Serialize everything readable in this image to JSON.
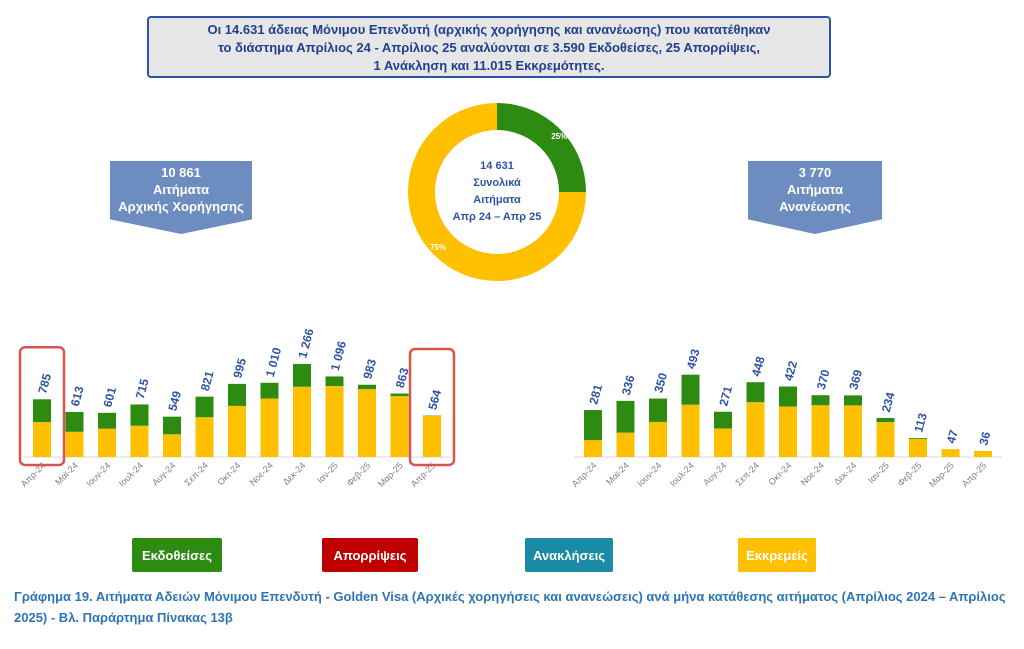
{
  "summary": {
    "line1": "Οι 14.631 άδειας Μόνιμου Επενδυτή (αρχικής χορήγησης και ανανέωσης) που κατατέθηκαν",
    "line2": "το διάστημα Απρίλιος 24 - Απρίλιος 25 αναλύονται σε 3.590 Εκδοθείσες, 25 Απορρίψεις,",
    "line3": "1 Ανάκληση και 11.015 Εκκρεμότητες."
  },
  "banners": {
    "initial": {
      "value": "10 861",
      "line1": "Αιτήματα",
      "line2": "Αρχικής Χορήγησης"
    },
    "renewal": {
      "value": "3 770",
      "line1": "Αιτήματα",
      "line2": "Ανανέωσης"
    }
  },
  "legend": [
    {
      "label": "Εκδοθείσες",
      "color": "#2e8b12"
    },
    {
      "label": "Απορρίψεις",
      "color": "#c00000"
    },
    {
      "label": "Ανακλήσεις",
      "color": "#1b8aa6"
    },
    {
      "label": "Εκκρεμείς",
      "color": "#ffc000"
    }
  ],
  "caption": "Γράφημα 19. Αιτήματα Αδειών Μόνιμου Επενδυτή - Golden Visa (Αρχικές χορηγήσεις και ανανεώσεις) ανά μήνα κατάθεσης αιτήματος (Απρίλιος 2024 – Απρίλιος 2025) - Βλ. Παράρτημα  Πίνακας 13β",
  "chart_data": [
    {
      "type": "pie",
      "center_label": [
        "14 631",
        "Συνολικά",
        "Αιτήματα",
        "Απρ 24 – Απρ 25"
      ],
      "slices": [
        {
          "value": 25,
          "label": "25%",
          "color": "#2e8b12"
        },
        {
          "value": 75,
          "label": "75%",
          "color": "#ffc000"
        }
      ]
    },
    {
      "type": "bar",
      "stacked": true,
      "categories": [
        "Απρ-24",
        "Μαϊ-24",
        "Ιουν-24",
        "Ιουλ-24",
        "Αυγ-24",
        "Σεπ-24",
        "Οκτ-24",
        "Νοε-24",
        "Δεκ-24",
        "Ιαν-25",
        "Φεβ-25",
        "Μαρ-25",
        "Απρ-25"
      ],
      "totals": [
        785,
        613,
        601,
        715,
        549,
        821,
        995,
        1010,
        1266,
        1096,
        983,
        863,
        564
      ],
      "total_labels": [
        "785",
        "613",
        "601",
        "715",
        "549",
        "821",
        "995",
        "1 010",
        "1 266",
        "1 096",
        "983",
        "863",
        "564"
      ],
      "series": [
        {
          "values": [
            310,
            270,
            215,
            290,
            240,
            280,
            300,
            215,
            310,
            130,
            60,
            35,
            5
          ],
          "color": "#2e8b12"
        },
        {
          "values": [
            475,
            343,
            386,
            425,
            309,
            541,
            695,
            795,
            956,
            966,
            923,
            828,
            559
          ],
          "color": "#ffc000"
        }
      ],
      "highlighted": [
        "Απρ-24",
        "Απρ-25"
      ]
    },
    {
      "type": "bar",
      "stacked": true,
      "categories": [
        "Απρ-24",
        "Μαϊ-24",
        "Ιουν-24",
        "Ιουλ-24",
        "Αυγ-24",
        "Σεπ-24",
        "Οκτ-24",
        "Νοε-24",
        "Δεκ-24",
        "Ιαν-25",
        "Φεβ-25",
        "Μαρ-25",
        "Απρ-25"
      ],
      "totals": [
        281,
        336,
        350,
        493,
        271,
        448,
        422,
        370,
        369,
        234,
        113,
        47,
        36
      ],
      "total_labels": [
        "281",
        "336",
        "350",
        "493",
        "271",
        "448",
        "422",
        "370",
        "369",
        "234",
        "113",
        "47",
        "36"
      ],
      "series": [
        {
          "values": [
            180,
            190,
            140,
            180,
            100,
            120,
            120,
            60,
            60,
            25,
            5,
            0,
            0
          ],
          "color": "#2e8b12"
        },
        {
          "values": [
            101,
            146,
            210,
            313,
            171,
            328,
            302,
            310,
            309,
            209,
            108,
            47,
            36
          ],
          "color": "#ffc000"
        }
      ]
    }
  ]
}
